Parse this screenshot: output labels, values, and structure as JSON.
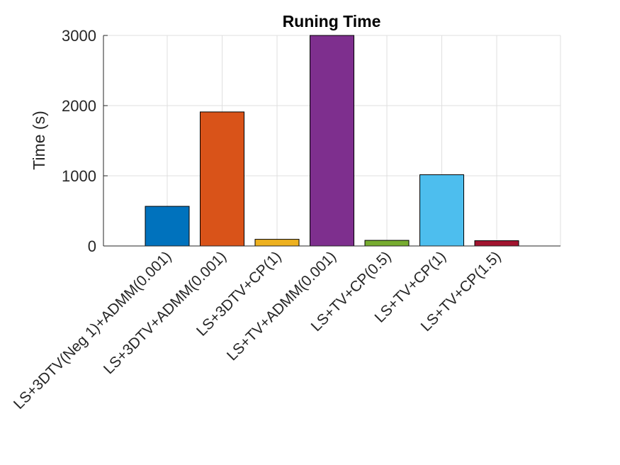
{
  "chart_data": {
    "type": "bar",
    "title": "Runing Time",
    "xlabel": "",
    "ylabel": "Time (s)",
    "ylim": [
      0,
      3000
    ],
    "yticks": [
      0,
      1000,
      2000,
      3000
    ],
    "grid": true,
    "categories": [
      "LS+3DTV(Neg 1)+ADMM(0.001)",
      "LS+3DTV+ADMM(0.001)",
      "LS+3DTV+CP(1)",
      "LS+TV+ADMM(0.001)",
      "LS+TV+CP(0.5)",
      "LS+TV+CP(1)",
      "LS+TV+CP(1.5)"
    ],
    "values": [
      565,
      1910,
      95,
      3000,
      80,
      1015,
      75
    ],
    "colors": [
      "#0072BD",
      "#D95319",
      "#EDB120",
      "#7E2F8E",
      "#77AC30",
      "#4DBEEE",
      "#A2142F"
    ]
  }
}
